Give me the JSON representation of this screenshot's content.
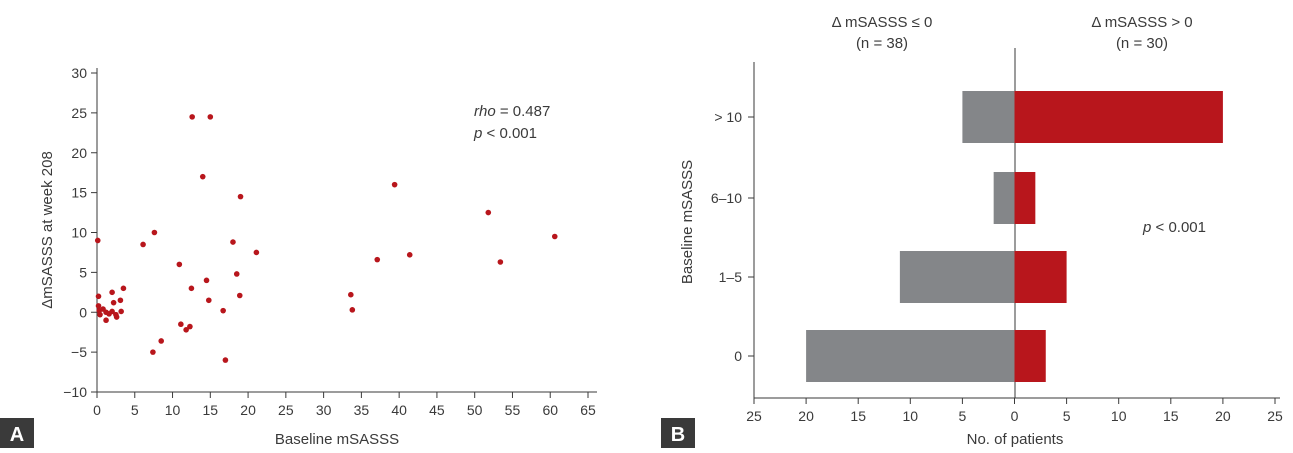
{
  "chart_data": [
    {
      "type": "scatter",
      "panel_label": "A",
      "xlabel": "Baseline mSASSS",
      "ylabel": "ΔmSASSS at week 208",
      "xlim": [
        0,
        65
      ],
      "ylim": [
        -10,
        30
      ],
      "xticks": [
        0,
        5,
        10,
        15,
        20,
        25,
        30,
        35,
        40,
        45,
        50,
        55,
        60,
        65
      ],
      "yticks": [
        -10,
        -5,
        0,
        5,
        10,
        15,
        20,
        25,
        30
      ],
      "xtick_labels": [
        "0",
        "5",
        "10",
        "15",
        "20",
        "25",
        "30",
        "35",
        "40",
        "45",
        "50",
        "55",
        "60",
        "65"
      ],
      "ytick_labels": [
        "−10",
        "−5",
        "0",
        "5",
        "10",
        "15",
        "20",
        "25",
        "30"
      ],
      "marker_color": "#b8161c",
      "annotations": {
        "rho_label": "rho",
        "rho_value": " = 0.487",
        "p_label": "p",
        "p_value": " < 0.001"
      },
      "points": [
        {
          "x": 0.1,
          "y": 9.0
        },
        {
          "x": 0.2,
          "y": 2.0
        },
        {
          "x": 0.2,
          "y": 0.8
        },
        {
          "x": 0.3,
          "y": 0.2
        },
        {
          "x": 0.4,
          "y": -0.3
        },
        {
          "x": 0.8,
          "y": 0.4
        },
        {
          "x": 1.2,
          "y": 0.0
        },
        {
          "x": 1.2,
          "y": -1.0
        },
        {
          "x": 1.6,
          "y": -0.2
        },
        {
          "x": 2.0,
          "y": 2.5
        },
        {
          "x": 2.0,
          "y": 0.1
        },
        {
          "x": 2.2,
          "y": 1.2
        },
        {
          "x": 2.5,
          "y": -0.3
        },
        {
          "x": 2.6,
          "y": -0.6
        },
        {
          "x": 3.1,
          "y": 1.5
        },
        {
          "x": 3.2,
          "y": 0.1
        },
        {
          "x": 3.5,
          "y": 3.0
        },
        {
          "x": 6.1,
          "y": 8.5
        },
        {
          "x": 7.4,
          "y": -5.0
        },
        {
          "x": 7.6,
          "y": 10.0
        },
        {
          "x": 8.5,
          "y": -3.6
        },
        {
          "x": 10.9,
          "y": 6.0
        },
        {
          "x": 11.1,
          "y": -1.5
        },
        {
          "x": 11.8,
          "y": -2.2
        },
        {
          "x": 12.3,
          "y": -1.8
        },
        {
          "x": 12.5,
          "y": 3.0
        },
        {
          "x": 12.6,
          "y": 24.5
        },
        {
          "x": 14.0,
          "y": 17.0
        },
        {
          "x": 14.5,
          "y": 4.0
        },
        {
          "x": 14.8,
          "y": 1.5
        },
        {
          "x": 15.0,
          "y": 24.5
        },
        {
          "x": 16.7,
          "y": 0.2
        },
        {
          "x": 17.0,
          "y": -6.0
        },
        {
          "x": 18.0,
          "y": 8.8
        },
        {
          "x": 18.5,
          "y": 4.8
        },
        {
          "x": 18.9,
          "y": 2.1
        },
        {
          "x": 19.0,
          "y": 14.5
        },
        {
          "x": 21.1,
          "y": 7.5
        },
        {
          "x": 33.6,
          "y": 2.2
        },
        {
          "x": 33.8,
          "y": 0.3
        },
        {
          "x": 37.1,
          "y": 6.6
        },
        {
          "x": 39.4,
          "y": 16.0
        },
        {
          "x": 41.4,
          "y": 7.2
        },
        {
          "x": 51.8,
          "y": 12.5
        },
        {
          "x": 53.4,
          "y": 6.3
        },
        {
          "x": 60.6,
          "y": 9.5
        }
      ]
    },
    {
      "type": "bar",
      "orientation": "horizontal",
      "panel_label": "B",
      "xlabel": "No. of patients",
      "ylabel": "Baseline mSASSS",
      "xlim": [
        -25,
        25
      ],
      "xticks": [
        -25,
        -20,
        -15,
        -10,
        -5,
        0,
        5,
        10,
        15,
        20,
        25
      ],
      "xtick_labels": [
        "25",
        "20",
        "15",
        "10",
        "5",
        "0",
        "5",
        "10",
        "15",
        "20",
        "25"
      ],
      "categories": [
        "> 10",
        "6–10",
        "1–5",
        "0"
      ],
      "series": [
        {
          "name": "Δ mSASSS ≤ 0",
          "n_label": "(n = 38)",
          "color": "#848689",
          "values": [
            5,
            2,
            11,
            20
          ]
        },
        {
          "name": "Δ mSASSS > 0",
          "n_label": "(n = 30)",
          "color": "#b8161c",
          "values": [
            20,
            2,
            5,
            3
          ]
        }
      ],
      "annotations": {
        "p_label": "p",
        "p_value": " < 0.001"
      }
    }
  ],
  "badge_color": "#3a3a3a"
}
